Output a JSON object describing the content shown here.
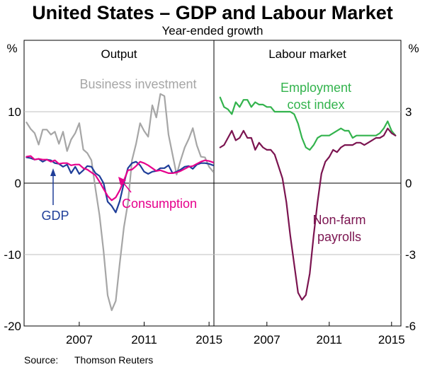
{
  "chart_data": {
    "title": "United States – GDP and Labour Market",
    "subtitle": "Year-ended growth",
    "source_label": "Source:",
    "source_text": "Thomson Reuters",
    "x_ticks": [
      "2007",
      "2011",
      "2015"
    ],
    "x_tick_values": [
      2007,
      2011,
      2015
    ],
    "panels": [
      {
        "title": "Output",
        "type": "line",
        "xlim": [
          2003.6,
          2015.3
        ],
        "ylim": [
          -20,
          20
        ],
        "ylabel": "%",
        "y_ticks": [
          10,
          0,
          -10,
          -20
        ],
        "y_tick_labels": [
          "10",
          "0",
          "-10",
          "-20"
        ],
        "series": [
          {
            "name": "Business investment",
            "color": "#a6a6a6",
            "x": [
              2003.75,
              2004.0,
              2004.25,
              2004.5,
              2004.75,
              2005.0,
              2005.25,
              2005.5,
              2005.75,
              2006.0,
              2006.25,
              2006.5,
              2006.75,
              2007.0,
              2007.25,
              2007.5,
              2007.75,
              2008.0,
              2008.25,
              2008.5,
              2008.75,
              2009.0,
              2009.25,
              2009.5,
              2009.75,
              2010.0,
              2010.25,
              2010.5,
              2010.75,
              2011.0,
              2011.25,
              2011.5,
              2011.75,
              2012.0,
              2012.25,
              2012.5,
              2012.75,
              2013.0,
              2013.25,
              2013.5,
              2013.75,
              2014.0,
              2014.25,
              2014.5,
              2014.75,
              2015.0,
              2015.25
            ],
            "y": [
              8.5,
              7.6,
              7.0,
              5.4,
              7.5,
              7.5,
              6.8,
              7.2,
              5.5,
              7.2,
              4.5,
              6.1,
              7.0,
              8.4,
              4.7,
              4.2,
              3.2,
              -0.8,
              -4.5,
              -9.5,
              -15.7,
              -17.8,
              -16.5,
              -11.2,
              -6.2,
              -2.8,
              3.2,
              5.5,
              8.4,
              7.3,
              6.5,
              10.9,
              9.2,
              12.5,
              12.2,
              6.8,
              4.0,
              1.2,
              3.2,
              5.0,
              6.2,
              7.7,
              5.3,
              3.7,
              3.6,
              2.3,
              1.6
            ]
          },
          {
            "name": "GDP",
            "color": "#1f3e99",
            "x": [
              2003.75,
              2004.0,
              2004.25,
              2004.5,
              2004.75,
              2005.0,
              2005.25,
              2005.5,
              2005.75,
              2006.0,
              2006.25,
              2006.5,
              2006.75,
              2007.0,
              2007.25,
              2007.5,
              2007.75,
              2008.0,
              2008.25,
              2008.5,
              2008.75,
              2009.0,
              2009.25,
              2009.5,
              2009.75,
              2010.0,
              2010.25,
              2010.5,
              2010.75,
              2011.0,
              2011.25,
              2011.5,
              2011.75,
              2012.0,
              2012.25,
              2012.5,
              2012.75,
              2013.0,
              2013.25,
              2013.5,
              2013.75,
              2014.0,
              2014.25,
              2014.5,
              2014.75,
              2015.0,
              2015.25
            ],
            "y": [
              3.6,
              3.5,
              3.3,
              3.4,
              3.0,
              3.3,
              3.2,
              2.8,
              2.7,
              2.3,
              2.6,
              1.4,
              2.3,
              1.3,
              1.8,
              2.4,
              2.3,
              1.4,
              1.0,
              0.0,
              -2.6,
              -3.2,
              -4.1,
              -2.5,
              0.0,
              2.1,
              2.8,
              3.0,
              2.5,
              1.6,
              1.3,
              1.6,
              1.7,
              2.1,
              2.1,
              2.5,
              1.4,
              1.6,
              1.9,
              2.3,
              2.4,
              2.0,
              2.6,
              2.8,
              2.8,
              2.7,
              2.5
            ]
          },
          {
            "name": "Consumption",
            "color": "#e6008c",
            "x": [
              2003.75,
              2004.0,
              2004.25,
              2004.5,
              2004.75,
              2005.0,
              2005.25,
              2005.5,
              2005.75,
              2006.0,
              2006.25,
              2006.5,
              2006.75,
              2007.0,
              2007.25,
              2007.5,
              2007.75,
              2008.0,
              2008.25,
              2008.5,
              2008.75,
              2009.0,
              2009.25,
              2009.5,
              2009.75,
              2010.0,
              2010.25,
              2010.5,
              2010.75,
              2011.0,
              2011.25,
              2011.5,
              2011.75,
              2012.0,
              2012.25,
              2012.5,
              2012.75,
              2013.0,
              2013.25,
              2013.5,
              2013.75,
              2014.0,
              2014.25,
              2014.5,
              2014.75,
              2015.0,
              2015.25
            ],
            "y": [
              3.7,
              3.8,
              3.3,
              3.4,
              3.3,
              3.3,
              3.0,
              3.2,
              2.7,
              2.8,
              2.8,
              2.5,
              2.6,
              2.6,
              2.1,
              1.9,
              1.5,
              1.1,
              0.2,
              -0.8,
              -1.8,
              -2.4,
              -2.0,
              -1.0,
              0.4,
              1.8,
              1.9,
              2.4,
              3.0,
              2.8,
              2.5,
              2.1,
              1.7,
              1.8,
              1.6,
              1.4,
              1.4,
              1.5,
              1.7,
              2.0,
              2.3,
              2.4,
              2.7,
              3.0,
              3.2,
              3.1,
              2.9
            ]
          }
        ],
        "annotations": [
          {
            "text": "Business investment",
            "color": "#a6a6a6"
          },
          {
            "text": "GDP",
            "color": "#1f3e99"
          },
          {
            "text": "Consumption",
            "color": "#e6008c"
          }
        ]
      },
      {
        "title": "Labour market",
        "type": "line",
        "xlim": [
          2003.6,
          2015.6
        ],
        "ylim": [
          -6,
          6
        ],
        "ylabel": "%",
        "y_ticks": [
          3,
          0,
          -3,
          -6
        ],
        "y_tick_labels": [
          "3",
          "0",
          "-3",
          "-6"
        ],
        "series": [
          {
            "name": "Employment cost index",
            "color": "#33b34d",
            "x": [
              2004.0,
              2004.25,
              2004.5,
              2004.75,
              2005.0,
              2005.25,
              2005.5,
              2005.75,
              2006.0,
              2006.25,
              2006.5,
              2006.75,
              2007.0,
              2007.25,
              2007.5,
              2007.75,
              2008.0,
              2008.25,
              2008.5,
              2008.75,
              2009.0,
              2009.25,
              2009.5,
              2009.75,
              2010.0,
              2010.25,
              2010.5,
              2010.75,
              2011.0,
              2011.25,
              2011.5,
              2011.75,
              2012.0,
              2012.25,
              2012.5,
              2012.75,
              2013.0,
              2013.25,
              2013.5,
              2013.75,
              2014.0,
              2014.25,
              2014.5,
              2014.75,
              2015.0,
              2015.25
            ],
            "y": [
              3.6,
              3.2,
              3.1,
              2.9,
              3.4,
              3.2,
              3.5,
              3.5,
              3.2,
              3.4,
              3.3,
              3.3,
              3.2,
              3.2,
              3.0,
              3.0,
              3.0,
              3.0,
              3.0,
              2.9,
              2.5,
              1.9,
              1.5,
              1.4,
              1.6,
              1.9,
              2.0,
              2.0,
              2.0,
              2.1,
              2.2,
              2.3,
              2.2,
              2.2,
              1.9,
              2.0,
              2.0,
              2.0,
              2.0,
              2.0,
              2.0,
              2.1,
              2.3,
              2.6,
              2.2,
              2.0
            ]
          },
          {
            "name": "Non-farm payrolls",
            "color": "#7b1450",
            "x": [
              2004.0,
              2004.25,
              2004.5,
              2004.75,
              2005.0,
              2005.25,
              2005.5,
              2005.75,
              2006.0,
              2006.25,
              2006.5,
              2006.75,
              2007.0,
              2007.25,
              2007.5,
              2007.75,
              2008.0,
              2008.25,
              2008.5,
              2008.75,
              2009.0,
              2009.25,
              2009.5,
              2009.75,
              2010.0,
              2010.25,
              2010.5,
              2010.75,
              2011.0,
              2011.25,
              2011.5,
              2011.75,
              2012.0,
              2012.25,
              2012.5,
              2012.75,
              2013.0,
              2013.25,
              2013.5,
              2013.75,
              2014.0,
              2014.25,
              2014.5,
              2014.75,
              2015.0,
              2015.25
            ],
            "y": [
              1.5,
              1.6,
              1.9,
              2.2,
              1.8,
              1.9,
              2.2,
              1.9,
              1.9,
              1.4,
              1.7,
              1.5,
              1.4,
              1.4,
              1.2,
              0.7,
              0.2,
              -0.8,
              -2.2,
              -3.4,
              -4.6,
              -4.9,
              -4.7,
              -3.8,
              -2.2,
              -0.8,
              0.4,
              0.9,
              1.1,
              1.4,
              1.3,
              1.5,
              1.6,
              1.6,
              1.6,
              1.7,
              1.7,
              1.6,
              1.7,
              1.8,
              1.9,
              1.9,
              2.0,
              2.3,
              2.1,
              2.0
            ]
          }
        ],
        "annotations": [
          {
            "text": "Employment",
            "color": "#33b34d"
          },
          {
            "text": "cost index",
            "color": "#33b34d"
          },
          {
            "text": "Non-farm",
            "color": "#7b1450"
          },
          {
            "text": "payrolls",
            "color": "#7b1450"
          }
        ]
      }
    ]
  }
}
